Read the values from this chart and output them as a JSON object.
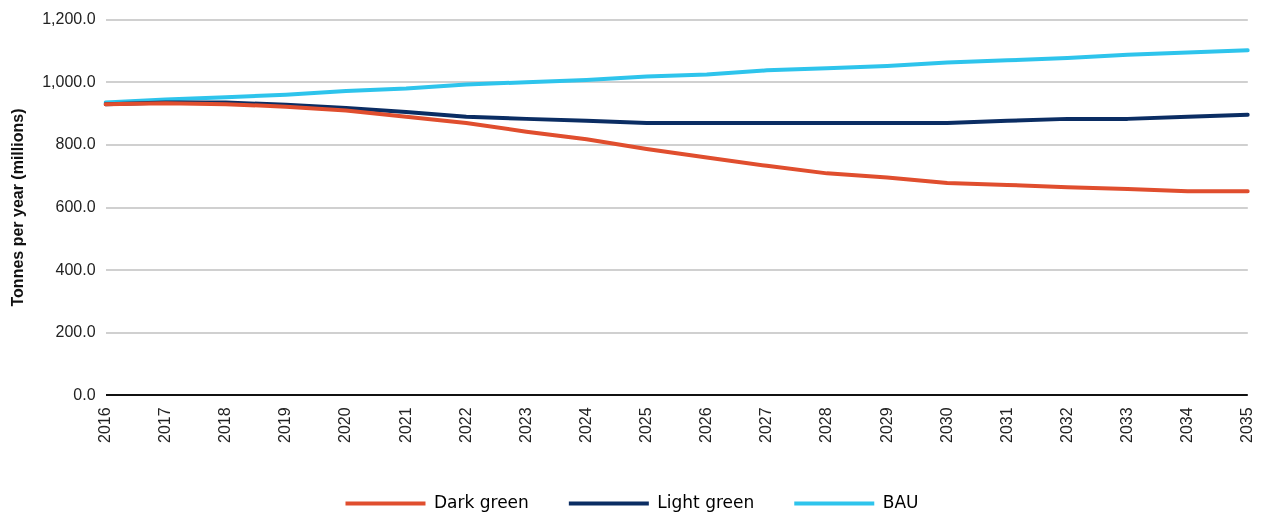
{
  "chart_data": {
    "type": "line",
    "ylabel": "Tonnes per year (millions)",
    "categories": [
      "2016",
      "2017",
      "2018",
      "2019",
      "2020",
      "2021",
      "2022",
      "2023",
      "2024",
      "2025",
      "2026",
      "2027",
      "2028",
      "2029",
      "2030",
      "2031",
      "2032",
      "2033",
      "2034",
      "2035"
    ],
    "series": [
      {
        "name": "Dark green",
        "color": "#e04e2e",
        "values": [
          930,
          933,
          930,
          922,
          910,
          890,
          870,
          842,
          818,
          787,
          760,
          733,
          709,
          696,
          678,
          672,
          665,
          659,
          652,
          652
        ]
      },
      {
        "name": "Light green",
        "color": "#0b2d63",
        "values": [
          930,
          935,
          935,
          928,
          918,
          905,
          890,
          883,
          877,
          870,
          870,
          870,
          870,
          870,
          870,
          877,
          883,
          883,
          890,
          896
        ]
      },
      {
        "name": "BAU",
        "color": "#2ec4ec",
        "values": [
          935,
          945,
          952,
          960,
          972,
          980,
          993,
          1000,
          1007,
          1018,
          1025,
          1038,
          1045,
          1052,
          1063,
          1070,
          1077,
          1088,
          1095,
          1102
        ]
      }
    ],
    "ylim": [
      0,
      1200
    ],
    "yticks": [
      {
        "value": 0,
        "label": "0.0"
      },
      {
        "value": 200,
        "label": "200.0"
      },
      {
        "value": 400,
        "label": "400.0"
      },
      {
        "value": 600,
        "label": "600.0"
      },
      {
        "value": 800,
        "label": "800.0"
      },
      {
        "value": 1000,
        "label": "1,000.0"
      },
      {
        "value": 1200,
        "label": "1,200.0"
      }
    ],
    "grid": "y",
    "legend": "bottom",
    "marker": "none",
    "line_style": "solid"
  }
}
